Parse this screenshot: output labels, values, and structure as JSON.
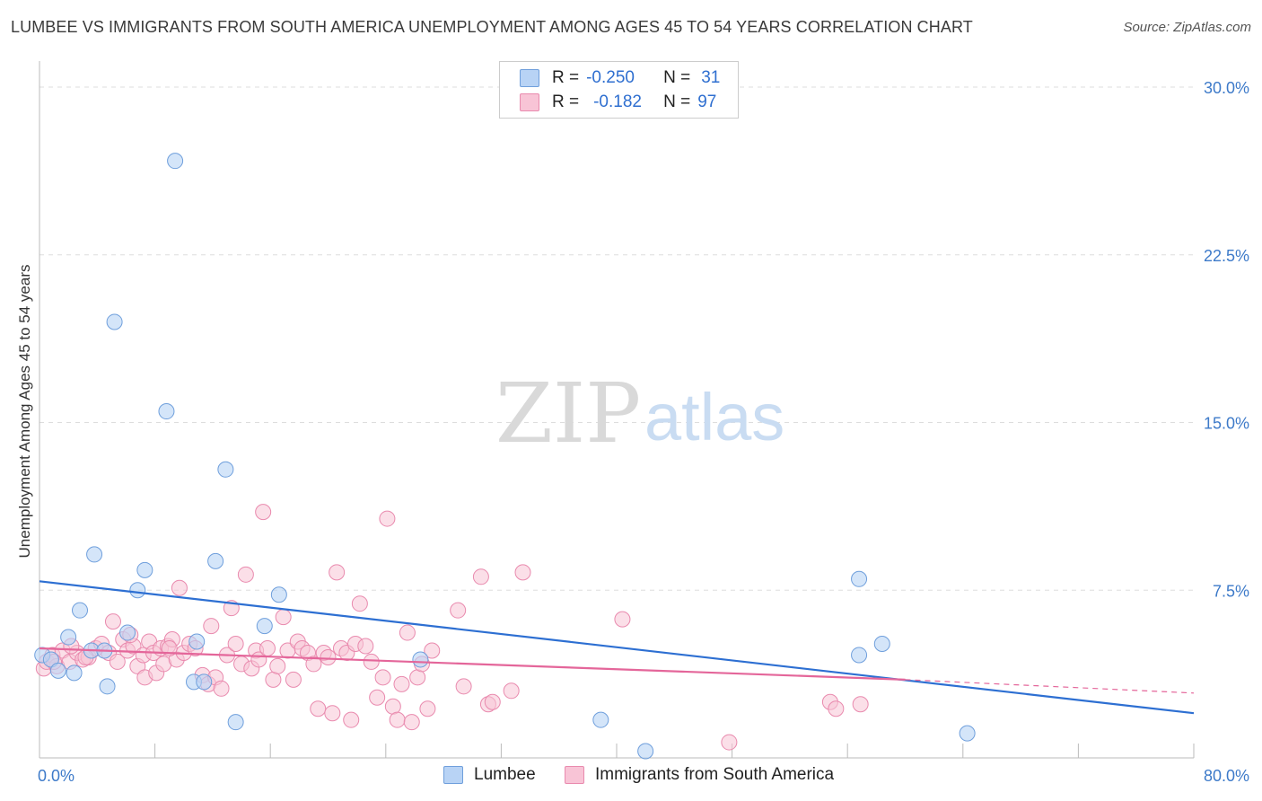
{
  "title": "LUMBEE VS IMMIGRANTS FROM SOUTH AMERICA UNEMPLOYMENT AMONG AGES 45 TO 54 YEARS CORRELATION CHART",
  "source": "Source: ZipAtlas.com",
  "watermark": {
    "zip": "ZIP",
    "atlas": "atlas"
  },
  "colors": {
    "lumbee_fill": "#b8d3f5",
    "lumbee_stroke": "#6f9fdc",
    "lumbee_line": "#2d6fd2",
    "immig_fill": "#f8c4d6",
    "immig_stroke": "#e98aae",
    "immig_line": "#e4669a",
    "grid": "#dddddd",
    "tick_text": "#3d7ac9"
  },
  "legend": {
    "rows": [
      {
        "r_label": "R =",
        "r_value": "-0.250",
        "n_label": "N =",
        "n_value": "31"
      },
      {
        "r_label": "R =",
        "r_value": "-0.182",
        "n_label": "N =",
        "n_value": "97"
      }
    ]
  },
  "chart_data": {
    "type": "scatter",
    "title": "LUMBEE VS IMMIGRANTS FROM SOUTH AMERICA UNEMPLOYMENT AMONG AGES 45 TO 54 YEARS CORRELATION CHART",
    "xlabel": "",
    "ylabel": "Unemployment Among Ages 45 to 54 years",
    "xlim": [
      0,
      80
    ],
    "ylim": [
      0,
      32
    ],
    "x_tick_labels": [
      "0.0%",
      "80.0%"
    ],
    "y_ticks": [
      {
        "value": 7.5,
        "label": "7.5%"
      },
      {
        "value": 15.0,
        "label": "15.0%"
      },
      {
        "value": 22.5,
        "label": "22.5%"
      },
      {
        "value": 30.0,
        "label": "30.0%"
      }
    ],
    "grid": "horizontal-dashed",
    "legend_position": "top-center",
    "series": [
      {
        "name": "Lumbee",
        "r": -0.25,
        "n": 31,
        "points": [
          [
            0.2,
            4.6
          ],
          [
            0.8,
            4.4
          ],
          [
            1.3,
            3.9
          ],
          [
            2.0,
            5.4
          ],
          [
            2.4,
            3.8
          ],
          [
            2.8,
            6.6
          ],
          [
            3.6,
            4.8
          ],
          [
            3.8,
            9.1
          ],
          [
            4.5,
            4.8
          ],
          [
            4.7,
            3.2
          ],
          [
            5.2,
            19.5
          ],
          [
            6.1,
            5.6
          ],
          [
            6.8,
            7.5
          ],
          [
            7.3,
            8.4
          ],
          [
            8.8,
            15.5
          ],
          [
            9.4,
            26.7
          ],
          [
            10.7,
            3.4
          ],
          [
            10.9,
            5.2
          ],
          [
            11.4,
            3.4
          ],
          [
            12.2,
            8.8
          ],
          [
            12.9,
            12.9
          ],
          [
            13.6,
            1.6
          ],
          [
            15.6,
            5.9
          ],
          [
            16.6,
            7.3
          ],
          [
            26.4,
            4.4
          ],
          [
            38.9,
            1.7
          ],
          [
            42.0,
            0.3
          ],
          [
            56.8,
            8.0
          ],
          [
            56.8,
            4.6
          ],
          [
            58.4,
            5.1
          ],
          [
            64.3,
            1.1
          ]
        ],
        "trend": {
          "x": [
            0,
            80
          ],
          "y": [
            7.9,
            2.0
          ]
        }
      },
      {
        "name": "Immigrants from South America",
        "r": -0.182,
        "n": 97,
        "points": [
          [
            0.3,
            4.0
          ],
          [
            0.5,
            4.3
          ],
          [
            0.9,
            4.6
          ],
          [
            1.2,
            4.1
          ],
          [
            1.6,
            4.8
          ],
          [
            2.1,
            4.3
          ],
          [
            2.6,
            4.7
          ],
          [
            3.0,
            4.4
          ],
          [
            3.4,
            4.5
          ],
          [
            3.9,
            4.9
          ],
          [
            4.3,
            5.1
          ],
          [
            4.8,
            4.7
          ],
          [
            5.1,
            6.1
          ],
          [
            5.4,
            4.3
          ],
          [
            5.8,
            5.3
          ],
          [
            6.1,
            4.8
          ],
          [
            6.5,
            5.0
          ],
          [
            6.8,
            4.1
          ],
          [
            7.2,
            4.6
          ],
          [
            7.3,
            3.6
          ],
          [
            7.6,
            5.2
          ],
          [
            7.9,
            4.7
          ],
          [
            8.1,
            3.8
          ],
          [
            8.4,
            4.9
          ],
          [
            8.6,
            4.2
          ],
          [
            8.9,
            5.0
          ],
          [
            9.2,
            5.3
          ],
          [
            9.5,
            4.4
          ],
          [
            9.7,
            7.6
          ],
          [
            10.0,
            4.7
          ],
          [
            10.4,
            5.1
          ],
          [
            10.8,
            4.9
          ],
          [
            11.3,
            3.7
          ],
          [
            11.7,
            3.3
          ],
          [
            11.9,
            5.9
          ],
          [
            12.2,
            3.6
          ],
          [
            12.6,
            3.1
          ],
          [
            13.0,
            4.6
          ],
          [
            13.3,
            6.7
          ],
          [
            13.6,
            5.1
          ],
          [
            14.0,
            4.2
          ],
          [
            14.3,
            8.2
          ],
          [
            14.7,
            4.0
          ],
          [
            15.0,
            4.8
          ],
          [
            15.2,
            4.4
          ],
          [
            15.5,
            11.0
          ],
          [
            15.8,
            4.9
          ],
          [
            16.2,
            3.5
          ],
          [
            16.5,
            4.1
          ],
          [
            16.9,
            6.3
          ],
          [
            17.2,
            4.8
          ],
          [
            17.6,
            3.5
          ],
          [
            17.9,
            5.2
          ],
          [
            18.2,
            4.9
          ],
          [
            18.6,
            4.7
          ],
          [
            19.0,
            4.2
          ],
          [
            19.3,
            2.2
          ],
          [
            19.7,
            4.7
          ],
          [
            20.0,
            4.5
          ],
          [
            20.3,
            2.0
          ],
          [
            20.6,
            8.3
          ],
          [
            20.9,
            4.9
          ],
          [
            21.3,
            4.7
          ],
          [
            21.6,
            1.7
          ],
          [
            21.9,
            5.1
          ],
          [
            22.2,
            6.9
          ],
          [
            22.6,
            5.0
          ],
          [
            23.0,
            4.3
          ],
          [
            23.4,
            2.7
          ],
          [
            23.8,
            3.6
          ],
          [
            24.1,
            10.7
          ],
          [
            24.5,
            2.3
          ],
          [
            24.8,
            1.7
          ],
          [
            25.1,
            3.3
          ],
          [
            25.5,
            5.6
          ],
          [
            25.8,
            1.6
          ],
          [
            26.2,
            3.6
          ],
          [
            26.5,
            4.2
          ],
          [
            26.9,
            2.2
          ],
          [
            27.2,
            4.8
          ],
          [
            29.0,
            6.6
          ],
          [
            29.4,
            3.2
          ],
          [
            30.6,
            8.1
          ],
          [
            31.1,
            2.4
          ],
          [
            31.4,
            2.5
          ],
          [
            32.7,
            3.0
          ],
          [
            33.5,
            8.3
          ],
          [
            40.4,
            6.2
          ],
          [
            47.8,
            0.7
          ],
          [
            54.8,
            2.5
          ],
          [
            55.2,
            2.2
          ],
          [
            56.9,
            2.4
          ],
          [
            1.0,
            4.3
          ],
          [
            2.2,
            5.0
          ],
          [
            3.2,
            4.5
          ],
          [
            6.3,
            5.5
          ],
          [
            9.0,
            4.9
          ]
        ],
        "trend": {
          "x": [
            0,
            60
          ],
          "y": [
            4.9,
            3.5
          ]
        },
        "trend_extension": {
          "x": [
            60,
            80
          ],
          "y": [
            3.5,
            2.9
          ]
        }
      }
    ]
  },
  "bottom_legend": {
    "lumbee": "Lumbee",
    "immig": "Immigrants from South America"
  }
}
